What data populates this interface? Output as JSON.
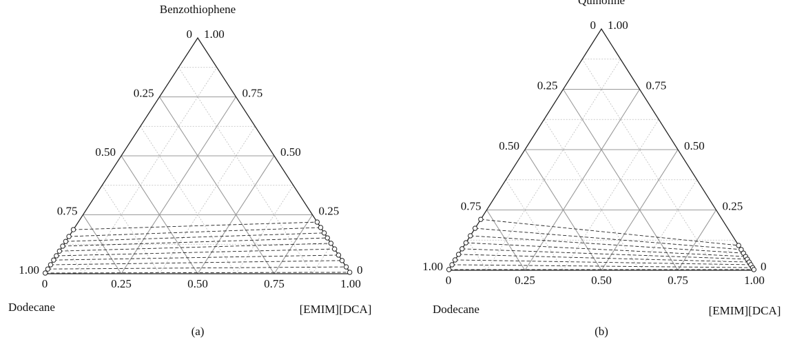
{
  "chart_data": [
    {
      "type": "ternary",
      "title": "Benzothiophene",
      "left_label": "Dodecane",
      "right_label": "[EMIM][DCA]",
      "caption": "(a)",
      "grid": true,
      "left_ticks": [
        0,
        {
          "value": 0.25,
          "label": "0.25"
        },
        {
          "value": 0.5,
          "label": "0.50"
        },
        {
          "value": 0.75,
          "label": "0.75"
        },
        {
          "value": 1,
          "label": "1.00"
        }
      ],
      "right_ticks": [
        0,
        {
          "value": 0.25,
          "label": "0.25"
        },
        {
          "value": 0.5,
          "label": "0.50"
        },
        {
          "value": 0.75,
          "label": "0.75"
        },
        {
          "value": 1,
          "label": "1.00"
        }
      ],
      "bottom_ticks": [
        0,
        {
          "value": 0.25,
          "label": "0.25"
        },
        {
          "value": 0.5,
          "label": "0.50"
        },
        {
          "value": 0.75,
          "label": "0.75"
        },
        {
          "value": 1,
          "label": "1.00"
        }
      ],
      "raffinate": [
        0.187,
        0.158,
        0.137,
        0.117,
        0.096,
        0.076,
        0.058,
        0.038,
        0.02,
        0.003
      ],
      "extract": [
        0.219,
        0.196,
        0.173,
        0.152,
        0.129,
        0.105,
        0.079,
        0.056,
        0.029,
        0.006
      ]
    },
    {
      "type": "ternary",
      "title": "Quinoline",
      "left_label": "Dodecane",
      "right_label": "[EMIM][DCA]",
      "caption": "(b)",
      "grid": true,
      "left_ticks": [
        0,
        {
          "value": 0.25,
          "label": "0.25"
        },
        {
          "value": 0.5,
          "label": "0.50"
        },
        {
          "value": 0.75,
          "label": "0.75"
        },
        {
          "value": 1,
          "label": "1.00"
        }
      ],
      "right_ticks": [
        0,
        {
          "value": 0.25,
          "label": "0.25"
        },
        {
          "value": 0.5,
          "label": "0.50"
        },
        {
          "value": 0.75,
          "label": "0.75"
        },
        {
          "value": 1,
          "label": "1.00"
        }
      ],
      "bottom_ticks": [
        0,
        {
          "value": 0.25,
          "label": "0.25"
        },
        {
          "value": 0.5,
          "label": "0.50"
        },
        {
          "value": 0.75,
          "label": "0.75"
        },
        {
          "value": 1,
          "label": "1.00"
        }
      ],
      "raffinate": [
        0.211,
        0.174,
        0.143,
        0.114,
        0.089,
        0.066,
        0.043,
        0.023,
        0.003
      ],
      "extract": [
        0.103,
        0.086,
        0.071,
        0.057,
        0.046,
        0.034,
        0.023,
        0.011,
        0.003
      ]
    }
  ]
}
